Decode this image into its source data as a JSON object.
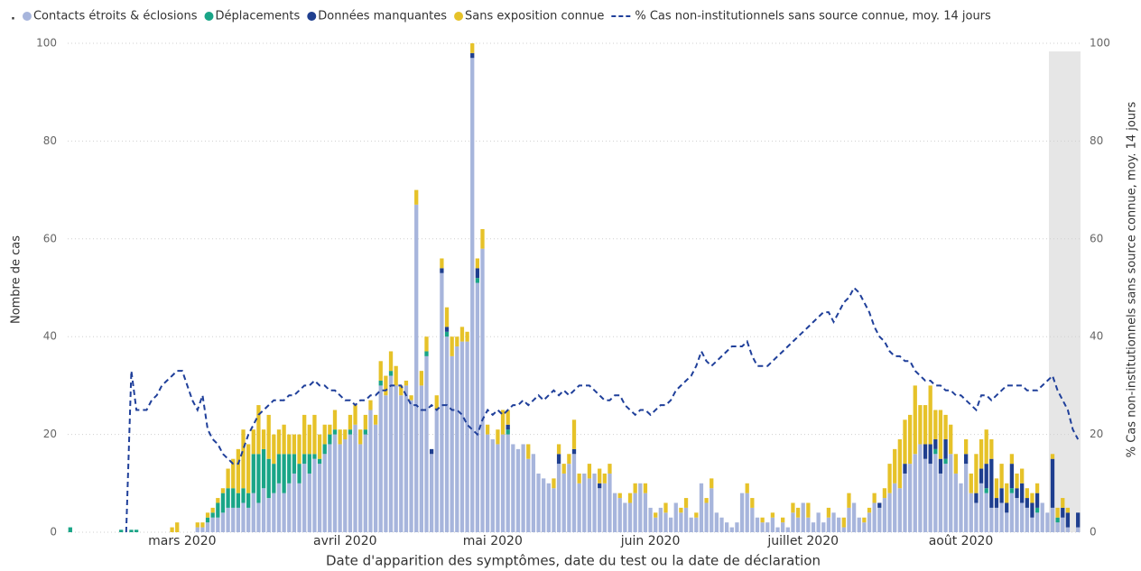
{
  "chart_data": {
    "type": "bar",
    "stacked": true,
    "legend_title": ".",
    "legend": "top",
    "xlabel": "Date d'apparition des symptômes, date du test ou la date de déclaration",
    "ylabel": "Nombre de cas",
    "y2label": "% Cas non-institutionnels sans source connue, moy. 14 jours",
    "ylim": [
      0,
      100
    ],
    "yticks": [
      0,
      20,
      40,
      60,
      80,
      100
    ],
    "y2lim": [
      0,
      100
    ],
    "y2ticks": [
      0,
      20,
      40,
      60,
      80,
      100
    ],
    "grid": true,
    "categories": [
      null,
      null,
      null,
      null,
      null,
      null,
      null,
      null,
      null,
      null,
      null,
      null,
      null,
      null,
      null,
      null,
      null,
      null,
      null,
      null,
      null,
      null,
      "mars 2020",
      null,
      null,
      null,
      null,
      null,
      null,
      null,
      null,
      null,
      null,
      null,
      null,
      null,
      null,
      null,
      null,
      null,
      null,
      null,
      null,
      null,
      null,
      null,
      null,
      null,
      null,
      null,
      null,
      null,
      null,
      null,
      "avril 2020",
      null,
      null,
      null,
      null,
      null,
      null,
      null,
      null,
      null,
      null,
      null,
      null,
      null,
      null,
      null,
      null,
      null,
      null,
      null,
      null,
      null,
      null,
      null,
      null,
      null,
      null,
      null,
      null,
      "mai 2020",
      null,
      null,
      null,
      null,
      null,
      null,
      null,
      null,
      null,
      null,
      null,
      null,
      null,
      null,
      null,
      null,
      null,
      null,
      null,
      null,
      null,
      null,
      null,
      null,
      null,
      null,
      null,
      null,
      null,
      null,
      "juin 2020",
      null,
      null,
      null,
      null,
      null,
      null,
      null,
      null,
      null,
      null,
      null,
      null,
      null,
      null,
      null,
      null,
      null,
      null,
      null,
      null,
      null,
      null,
      null,
      null,
      null,
      null,
      null,
      null,
      null,
      "juillet 2020",
      null,
      null,
      null,
      null,
      null,
      null,
      null,
      null,
      null,
      null,
      null,
      null,
      null,
      null,
      null,
      null,
      null,
      null,
      null,
      null,
      null,
      null,
      null,
      null,
      null,
      null,
      null,
      null,
      null,
      null,
      "août 2020",
      null,
      null,
      null,
      null,
      null,
      null,
      null,
      null,
      null,
      null,
      null,
      null,
      null,
      null,
      null,
      null,
      null,
      null,
      null,
      null,
      null,
      null,
      null
    ],
    "series": [
      {
        "name": "Contacts étroits & éclosions",
        "color": "#a7b5dc",
        "values": [
          0,
          0,
          0,
          0,
          0,
          0,
          0,
          0,
          0,
          0,
          0,
          0,
          0,
          0,
          0,
          0,
          0,
          0,
          0,
          0,
          0,
          0,
          0,
          0,
          0,
          1,
          1,
          2,
          3,
          3,
          4,
          5,
          5,
          5,
          6,
          5,
          8,
          6,
          9,
          7,
          8,
          10,
          8,
          10,
          12,
          10,
          14,
          12,
          15,
          14,
          16,
          18,
          20,
          18,
          19,
          20,
          22,
          18,
          20,
          25,
          22,
          30,
          28,
          32,
          30,
          28,
          30,
          27,
          67,
          30,
          36,
          16,
          25,
          53,
          40,
          36,
          38,
          39,
          39,
          97,
          51,
          58,
          20,
          19,
          18,
          20,
          20,
          18,
          17,
          18,
          15,
          16,
          12,
          11,
          10,
          9,
          14,
          12,
          14,
          16,
          10,
          12,
          11,
          12,
          9,
          10,
          12,
          8,
          7,
          6,
          6,
          8,
          10,
          8,
          5,
          3,
          5,
          4,
          3,
          6,
          4,
          5,
          3,
          3,
          10,
          6,
          9,
          4,
          3,
          2,
          1,
          2,
          8,
          8,
          5,
          3,
          2,
          2,
          3,
          1,
          2,
          1,
          4,
          3,
          6,
          3,
          2,
          4,
          2,
          3,
          4,
          3,
          1,
          5,
          6,
          3,
          2,
          4,
          6,
          5,
          7,
          8,
          10,
          9,
          12,
          14,
          16,
          18,
          15,
          14,
          16,
          12,
          14,
          16,
          12,
          10,
          14,
          8,
          6,
          10,
          8,
          5,
          5,
          6,
          4,
          8,
          7,
          6,
          5,
          3,
          4,
          6,
          4,
          5,
          2,
          3,
          1,
          0,
          1
        ]
      },
      {
        "name": "Déplacements",
        "color": "#1aa587",
        "values": [
          1,
          0,
          0,
          0,
          0,
          0,
          0,
          0,
          0,
          0,
          0.5,
          0,
          0.5,
          0.5,
          0,
          0,
          0,
          0,
          0,
          0,
          0,
          0,
          0,
          0,
          0,
          0,
          0,
          1,
          1,
          3,
          4,
          4,
          4,
          3,
          3,
          3,
          8,
          10,
          8,
          8,
          6,
          6,
          8,
          6,
          4,
          4,
          2,
          4,
          1,
          1,
          2,
          2,
          1,
          0,
          0,
          1,
          0,
          0,
          1,
          0,
          0,
          1,
          0,
          1,
          0,
          0,
          0,
          0,
          0,
          0,
          1,
          0,
          0,
          0,
          1,
          0,
          0,
          0,
          0,
          0,
          1,
          0,
          0,
          0,
          0,
          0,
          1,
          0,
          0,
          0,
          0,
          0,
          0,
          0,
          0,
          0,
          0,
          0,
          0,
          0,
          0,
          0,
          0,
          0,
          0,
          0,
          0,
          0,
          0,
          0,
          0,
          0,
          0,
          0,
          0,
          0,
          0,
          0,
          0,
          0,
          0,
          0,
          0,
          0,
          0,
          0,
          0,
          0,
          0,
          0,
          0,
          0,
          0,
          0,
          0,
          0,
          0,
          0,
          0,
          0,
          0,
          0,
          0,
          0,
          0,
          0,
          0,
          0,
          0,
          0,
          0,
          0,
          0,
          0,
          0,
          0,
          0,
          0,
          0,
          0,
          0,
          0,
          0,
          0,
          0,
          0,
          0,
          0,
          0,
          0,
          1,
          0,
          1,
          0,
          0,
          0,
          0,
          0,
          0,
          0,
          1,
          0,
          0,
          0,
          0,
          1,
          0,
          0,
          0,
          0,
          1,
          0,
          0,
          0,
          1,
          0,
          0,
          0,
          0
        ]
      },
      {
        "name": "Données manquantes",
        "color": "#1f3f8f",
        "values": [
          0,
          0,
          0,
          0,
          0,
          0,
          0,
          0,
          0,
          0,
          0,
          0,
          0,
          0,
          0,
          0,
          0,
          0,
          0,
          0,
          0,
          0,
          0,
          0,
          0,
          0,
          0,
          0,
          0,
          0,
          0,
          0,
          0,
          0,
          0,
          0,
          0,
          0,
          0,
          0,
          0,
          0,
          0,
          0,
          0,
          0,
          0,
          0,
          0,
          0,
          0,
          0,
          0,
          0,
          0,
          0,
          0,
          0,
          0,
          0,
          0,
          0,
          0,
          0,
          0,
          0,
          0,
          0,
          0,
          0,
          0,
          1,
          0,
          1,
          1,
          0,
          0,
          0,
          0,
          1,
          2,
          0,
          0,
          0,
          0,
          0,
          1,
          0,
          0,
          0,
          0,
          0,
          0,
          0,
          0,
          0,
          2,
          0,
          0,
          1,
          0,
          0,
          0,
          0,
          1,
          0,
          0,
          0,
          0,
          0,
          0,
          0,
          0,
          0,
          0,
          0,
          0,
          0,
          0,
          0,
          0,
          0,
          0,
          0,
          0,
          0,
          0,
          0,
          0,
          0,
          0,
          0,
          0,
          0,
          0,
          0,
          0,
          0,
          0,
          0,
          0,
          0,
          0,
          0,
          0,
          0,
          0,
          0,
          0,
          0,
          0,
          0,
          0,
          0,
          0,
          0,
          0,
          0,
          0,
          1,
          0,
          0,
          0,
          0,
          2,
          0,
          0,
          0,
          3,
          4,
          2,
          3,
          4,
          0,
          0,
          0,
          2,
          0,
          2,
          3,
          5,
          10,
          2,
          3,
          2,
          5,
          2,
          4,
          2,
          3,
          3,
          0,
          0,
          10,
          0,
          2,
          3,
          0,
          3
        ]
      },
      {
        "name": "Sans exposition connue",
        "color": "#e6c229",
        "values": [
          0,
          0,
          0,
          0,
          0,
          0,
          0,
          0,
          0,
          0,
          0,
          0,
          0,
          0,
          0,
          0,
          0,
          0,
          0,
          0,
          1,
          2,
          0,
          0,
          0,
          1,
          1,
          1,
          1,
          1,
          1,
          4,
          6,
          9,
          12,
          10,
          5,
          10,
          4,
          9,
          6,
          5,
          6,
          4,
          4,
          6,
          8,
          6,
          8,
          5,
          4,
          2,
          4,
          3,
          2,
          3,
          4,
          3,
          3,
          2,
          2,
          4,
          4,
          4,
          4,
          2,
          1,
          1,
          3,
          3,
          3,
          0,
          3,
          2,
          4,
          4,
          2,
          3,
          2,
          2,
          2,
          4,
          2,
          0,
          3,
          5,
          3,
          0,
          0,
          0,
          3,
          0,
          0,
          0,
          0,
          2,
          2,
          2,
          2,
          6,
          2,
          0,
          3,
          0,
          3,
          2,
          2,
          0,
          1,
          0,
          2,
          2,
          0,
          2,
          0,
          1,
          0,
          2,
          0,
          0,
          1,
          2,
          0,
          1,
          0,
          1,
          2,
          0,
          0,
          0,
          0,
          0,
          0,
          2,
          2,
          0,
          1,
          0,
          1,
          0,
          1,
          0,
          2,
          2,
          0,
          3,
          0,
          0,
          0,
          2,
          0,
          0,
          2,
          3,
          0,
          0,
          1,
          1,
          2,
          0,
          2,
          6,
          7,
          10,
          9,
          10,
          14,
          8,
          8,
          12,
          6,
          10,
          5,
          6,
          4,
          0,
          3,
          4,
          8,
          6,
          7,
          4,
          4,
          5,
          4,
          2,
          3,
          3,
          2,
          2,
          2,
          0,
          0,
          1,
          2,
          2,
          1,
          0,
          0
        ]
      },
      {
        "name": "% Cas non-institutionnels sans source connue, moy. 14 jours",
        "type": "line",
        "axis": "y2",
        "color": "#1f3f9a",
        "dash": true,
        "values": [
          null,
          null,
          null,
          null,
          null,
          null,
          null,
          null,
          null,
          null,
          null,
          0,
          33,
          25,
          25,
          25,
          27,
          28,
          30,
          31,
          32,
          33,
          33,
          30,
          27,
          25,
          28,
          21,
          19,
          18,
          16,
          15,
          14,
          14,
          17,
          20,
          22,
          24,
          25,
          26,
          27,
          27,
          27,
          28,
          28,
          29,
          30,
          30,
          31,
          30,
          30,
          29,
          29,
          28,
          27,
          27,
          26,
          27,
          27,
          28,
          28,
          29,
          29,
          30,
          30,
          30,
          28,
          26,
          26,
          25,
          25,
          26,
          25,
          26,
          26,
          25,
          25,
          24,
          22,
          21,
          20,
          23,
          25,
          24,
          25,
          24,
          25,
          26,
          26,
          27,
          26,
          27,
          28,
          27,
          28,
          29,
          28,
          29,
          28,
          29,
          30,
          30,
          30,
          29,
          28,
          27,
          27,
          28,
          28,
          26,
          25,
          24,
          25,
          25,
          24,
          25,
          26,
          26,
          27,
          29,
          30,
          31,
          32,
          34,
          37,
          35,
          34,
          35,
          36,
          37,
          38,
          38,
          38,
          39,
          36,
          34,
          34,
          34,
          35,
          36,
          37,
          38,
          39,
          40,
          41,
          42,
          43,
          44,
          45,
          45,
          43,
          45,
          47,
          48,
          50,
          49,
          47,
          45,
          42,
          40,
          39,
          37,
          36,
          36,
          35,
          35,
          33,
          32,
          31,
          31,
          30,
          30,
          29,
          29,
          28,
          28,
          27,
          26,
          25,
          28,
          28,
          27,
          28,
          29,
          30,
          30,
          30,
          30,
          29,
          29,
          29,
          30,
          31,
          32,
          29,
          27,
          25,
          21,
          19
        ]
      }
    ]
  }
}
